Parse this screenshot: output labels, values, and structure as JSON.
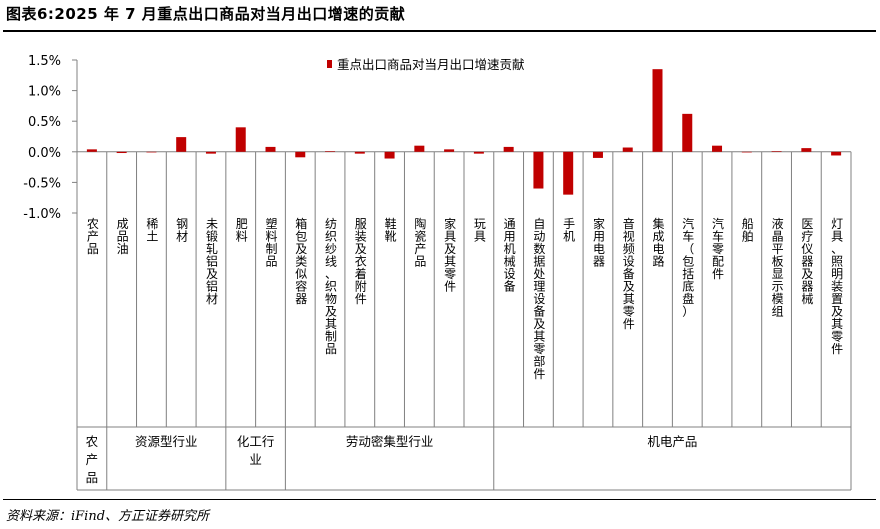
{
  "header": {
    "title": "图表6:2025 年 7 月重点出口商品对当月出口增速的贡献"
  },
  "footer": {
    "source": "资料来源：iFind、方正证券研究所"
  },
  "colors": {
    "bar": "#c00000",
    "axis": "#808080",
    "text": "#000000"
  },
  "chart_data": {
    "type": "bar",
    "title": "",
    "xlabel": "",
    "ylabel": "",
    "ylim": [
      -1.0,
      1.5
    ],
    "ytick_values": [
      1.5,
      1.0,
      0.5,
      0.0,
      -0.5,
      -1.0
    ],
    "ytick_labels": [
      "1.5%",
      "1.0%",
      "0.5%",
      "0.0%",
      "-0.5%",
      "-1.0%"
    ],
    "grid": false,
    "legend_position": "top-center",
    "categories": [
      "农产品",
      "成品油",
      "稀土",
      "钢材",
      "未锻轧铝及铝材",
      "肥料",
      "塑料制品",
      "箱包及类似容器",
      "纺织纱线、织物及其制品",
      "服装及衣着附件",
      "鞋靴",
      "陶瓷产品",
      "家具及其零件",
      "玩具",
      "通用机械设备",
      "自动数据处理设备及其零部件",
      "手机",
      "家用电器",
      "音视频设备及其零件",
      "集成电路",
      "汽车（包括底盘）",
      "汽车零配件",
      "船舶",
      "液晶平板显示模组",
      "医疗仪器及器械",
      "灯具、照明装置及其零件"
    ],
    "series": [
      {
        "name": "重点出口商品对当月出口增速贡献",
        "values": [
          0.04,
          -0.02,
          0.0,
          0.24,
          -0.03,
          0.4,
          0.08,
          -0.09,
          0.01,
          -0.03,
          -0.11,
          0.1,
          0.04,
          -0.03,
          0.08,
          -0.6,
          -0.7,
          -0.1,
          0.07,
          1.35,
          0.62,
          0.1,
          -0.01,
          0.01,
          0.06,
          -0.06
        ]
      }
    ],
    "groups": [
      {
        "label": "农产品",
        "lines": [
          "农",
          "产",
          "品"
        ],
        "count": 1
      },
      {
        "label": "资源型行业",
        "lines": [
          "资源型行业"
        ],
        "count": 4
      },
      {
        "label": "化工行业",
        "lines": [
          "化工行",
          "业"
        ],
        "count": 2
      },
      {
        "label": "劳动密集型行业",
        "lines": [
          "劳动密集型行业"
        ],
        "count": 7
      },
      {
        "label": "机电产品",
        "lines": [
          "机电产品"
        ],
        "count": 12
      }
    ]
  }
}
